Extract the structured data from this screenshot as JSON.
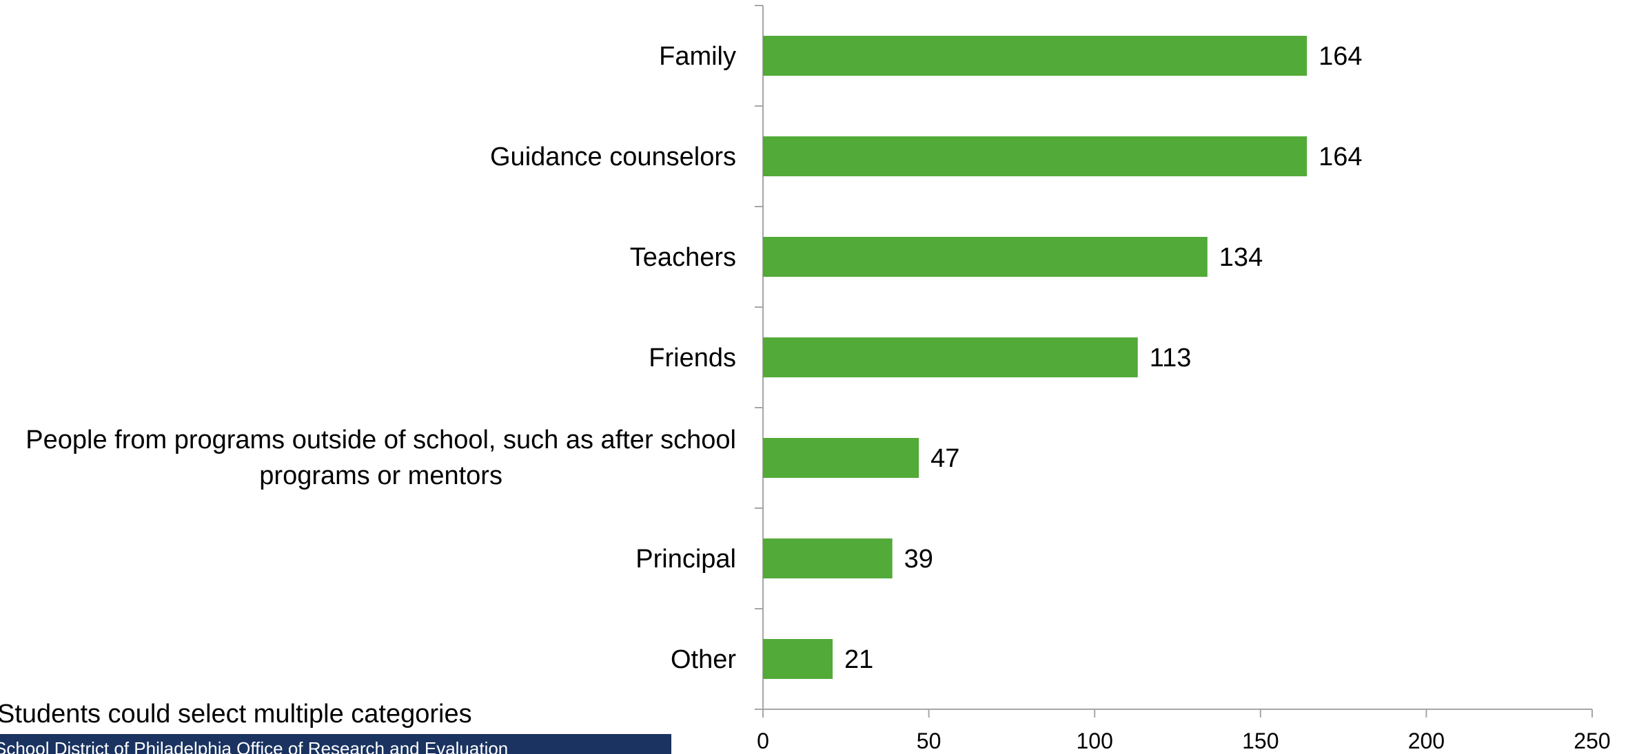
{
  "colors": {
    "bar": "#52aa38",
    "axis": "#a6a6a6",
    "footer_bg": "#1a3360"
  },
  "slide": {
    "title": "",
    "footnote": "Students could select multiple categories",
    "footer": "School District of Philadelphia Office of Research and Evaluation"
  },
  "chart_data": {
    "type": "bar",
    "orientation": "horizontal",
    "title": "",
    "xlabel": "",
    "ylabel": "",
    "categories": [
      "Family",
      "Guidance counselors",
      "Teachers",
      "Friends",
      "People from programs outside of school, such as after school programs or mentors",
      "Principal",
      "Other"
    ],
    "category_lines": [
      [
        "Family"
      ],
      [
        "Guidance counselors"
      ],
      [
        "Teachers"
      ],
      [
        "Friends"
      ],
      [
        "People from programs outside of school, such as after school",
        "programs or mentors"
      ],
      [
        "Principal"
      ],
      [
        "Other"
      ]
    ],
    "values": [
      164,
      164,
      134,
      113,
      47,
      39,
      21
    ],
    "xlim": [
      0,
      250
    ],
    "xticks": [
      0,
      50,
      100,
      150,
      200,
      250
    ],
    "grid": false,
    "data_labels": true
  }
}
